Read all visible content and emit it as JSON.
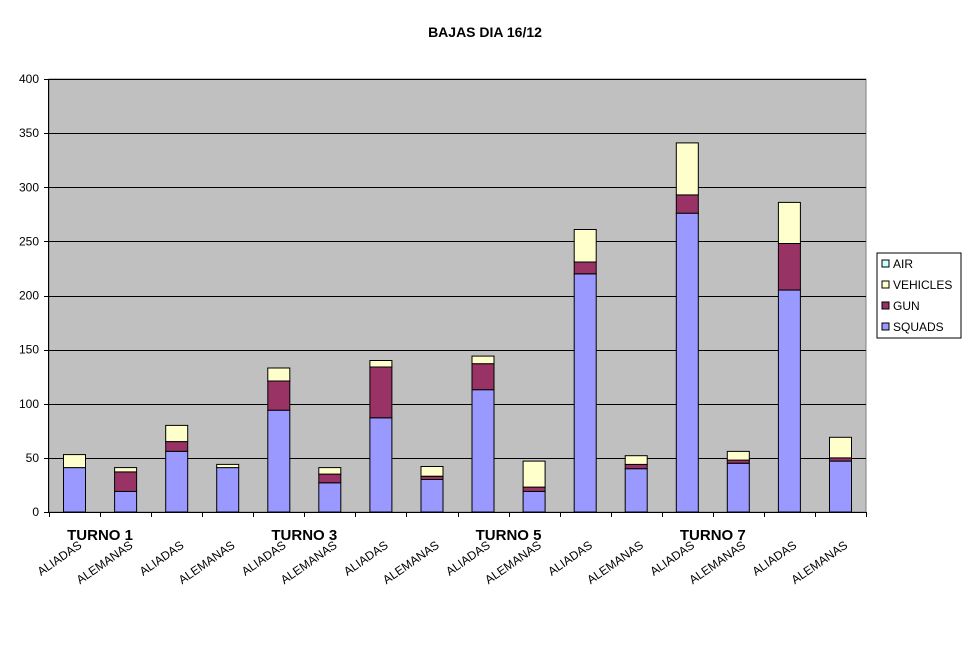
{
  "chart_data": {
    "type": "bar",
    "stacked": true,
    "title": "BAJAS DIA 16/12",
    "ylim": [
      0,
      400
    ],
    "yticks": [
      0,
      50,
      100,
      150,
      200,
      250,
      300,
      350,
      400
    ],
    "grid": true,
    "legend_position": "right",
    "categories": [
      "ALIADAS",
      "ALEMANAS",
      "ALIADAS",
      "ALEMANAS",
      "ALIADAS",
      "ALEMANAS",
      "ALIADAS",
      "ALEMANAS",
      "ALIADAS",
      "ALEMANAS",
      "ALIADAS",
      "ALEMANAS",
      "ALIADAS",
      "ALEMANAS",
      "ALIADAS",
      "ALEMANAS"
    ],
    "groups": [
      {
        "label": "TURNO 1",
        "start": 0
      },
      {
        "label": "TURNO 3",
        "start": 4
      },
      {
        "label": "TURNO 5",
        "start": 8
      },
      {
        "label": "TURNO 7",
        "start": 12
      }
    ],
    "series": [
      {
        "name": "SQUADS",
        "color": "#9999ff",
        "values": [
          41,
          19,
          56,
          41,
          94,
          27,
          87,
          30,
          113,
          19,
          220,
          40,
          276,
          45,
          205,
          47
        ]
      },
      {
        "name": "GUN",
        "color": "#993366",
        "values": [
          0,
          18,
          9,
          0,
          27,
          8,
          47,
          3,
          24,
          4,
          11,
          4,
          17,
          3,
          43,
          3
        ]
      },
      {
        "name": "VEHICLES",
        "color": "#ffffcc",
        "values": [
          12,
          4,
          15,
          3,
          12,
          6,
          6,
          9,
          7,
          24,
          30,
          8,
          48,
          8,
          38,
          19
        ]
      },
      {
        "name": "AIR",
        "color": "#ccffff",
        "values": [
          0,
          0,
          0,
          0,
          0,
          0,
          0,
          0,
          0,
          0,
          0,
          0,
          0,
          0,
          0,
          0
        ]
      }
    ],
    "legend_order": [
      "AIR",
      "VEHICLES",
      "GUN",
      "SQUADS"
    ],
    "plot_background": "#c0c0c0"
  }
}
